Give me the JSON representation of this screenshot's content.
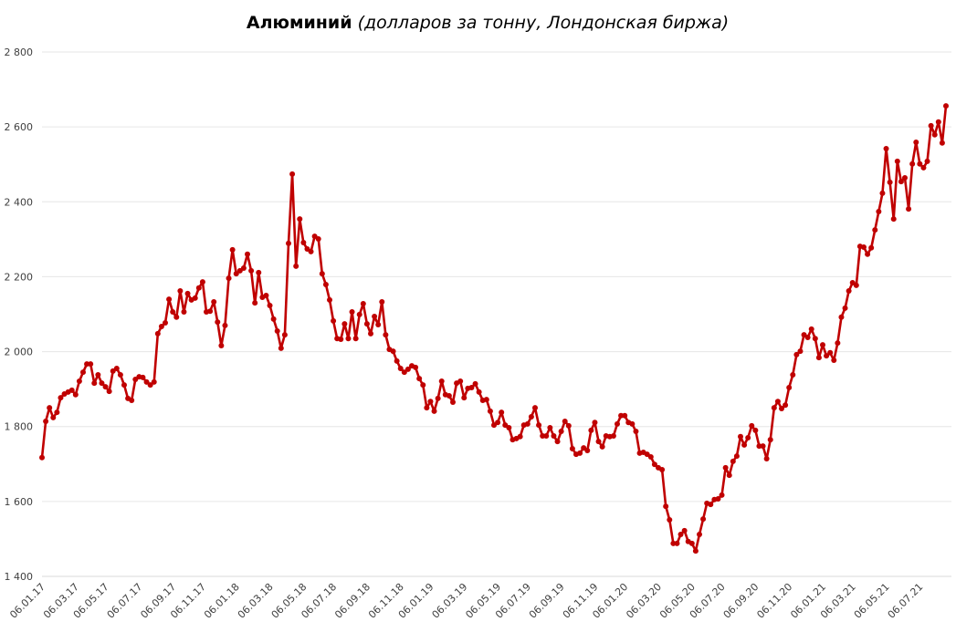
{
  "chart_data": {
    "type": "line",
    "title": "Алюминий",
    "subtitle": "(долларов за тонну, Лондонская биржа)",
    "categories": [
      "06.01.17",
      null,
      null,
      null,
      null,
      null,
      null,
      null,
      null,
      "06.03.17",
      null,
      null,
      null,
      null,
      null,
      null,
      null,
      "06.05.17",
      null,
      null,
      null,
      null,
      null,
      null,
      null,
      null,
      "06.07.17",
      null,
      null,
      null,
      null,
      null,
      null,
      null,
      null,
      "06.09.17",
      null,
      null,
      null,
      null,
      null,
      null,
      null,
      "06.11.17",
      null,
      null,
      null,
      null,
      null,
      null,
      null,
      null,
      "06.01.18",
      null,
      null,
      null,
      null,
      null,
      null,
      null,
      null,
      "06.03.18",
      null,
      null,
      null,
      null,
      null,
      null,
      null,
      null,
      "06.05.18",
      null,
      null,
      null,
      null,
      null,
      null,
      null,
      "06.07.18",
      null,
      null,
      null,
      null,
      null,
      null,
      null,
      null,
      "06.09.18",
      null,
      null,
      null,
      null,
      null,
      null,
      null,
      null,
      "06.11.18",
      null,
      null,
      null,
      null,
      null,
      null,
      null,
      "06.01.19",
      null,
      null,
      null,
      null,
      null,
      null,
      null,
      null,
      "06.03.19",
      null,
      null,
      null,
      null,
      null,
      null,
      null,
      null,
      "06.05.19",
      null,
      null,
      null,
      null,
      null,
      null,
      null,
      "06.07.19",
      null,
      null,
      null,
      null,
      null,
      null,
      null,
      null,
      "06.09.19",
      null,
      null,
      null,
      null,
      null,
      null,
      null,
      null,
      "06.11.19",
      null,
      null,
      null,
      null,
      null,
      null,
      null,
      "06.01.20",
      null,
      null,
      null,
      null,
      null,
      null,
      null,
      null,
      "06.03.20",
      null,
      null,
      null,
      null,
      null,
      null,
      null,
      null,
      "06.05.20",
      null,
      null,
      null,
      null,
      null,
      null,
      null,
      "06.07.20",
      null,
      null,
      null,
      null,
      null,
      null,
      null,
      null,
      "06.09.20",
      null,
      null,
      null,
      null,
      null,
      null,
      null,
      null,
      "06.11.20",
      null,
      null,
      null,
      null,
      null,
      null,
      null,
      null,
      "06.01.21",
      null,
      null,
      null,
      null,
      null,
      null,
      null,
      "06.03.21",
      null,
      null,
      null,
      null,
      null,
      null,
      null,
      null,
      "06.05.21",
      null,
      null,
      null,
      null,
      null,
      null,
      null,
      null,
      "06.07.21",
      null,
      null,
      null,
      null,
      null,
      null,
      null
    ],
    "series": [
      {
        "name": "Алюминий",
        "color": "#c00000",
        "values": [
          1717,
          1814,
          1850,
          1824,
          1838,
          1877,
          1887,
          1892,
          1897,
          1885,
          1921,
          1945,
          1967,
          1967,
          1916,
          1938,
          1916,
          1906,
          1894,
          1948,
          1955,
          1938,
          1911,
          1875,
          1870,
          1926,
          1933,
          1931,
          1919,
          1911,
          1919,
          2048,
          2067,
          2077,
          2140,
          2106,
          2092,
          2162,
          2106,
          2155,
          2138,
          2143,
          2170,
          2186,
          2106,
          2108,
          2133,
          2079,
          2016,
          2070,
          2196,
          2272,
          2208,
          2216,
          2223,
          2260,
          2216,
          2130,
          2211,
          2145,
          2150,
          2123,
          2087,
          2055,
          2009,
          2045,
          2289,
          2474,
          2228,
          2354,
          2291,
          2274,
          2267,
          2308,
          2301,
          2208,
          2179,
          2138,
          2082,
          2035,
          2033,
          2074,
          2035,
          2106,
          2035,
          2099,
          2128,
          2074,
          2048,
          2094,
          2072,
          2133,
          2045,
          2006,
          2001,
          1975,
          1955,
          1945,
          1953,
          1962,
          1958,
          1928,
          1911,
          1850,
          1867,
          1841,
          1875,
          1921,
          1885,
          1882,
          1865,
          1916,
          1921,
          1877,
          1902,
          1904,
          1914,
          1892,
          1870,
          1872,
          1841,
          1804,
          1811,
          1838,
          1804,
          1797,
          1765,
          1768,
          1773,
          1804,
          1807,
          1826,
          1850,
          1804,
          1775,
          1775,
          1797,
          1775,
          1760,
          1787,
          1814,
          1802,
          1741,
          1726,
          1729,
          1743,
          1736,
          1790,
          1811,
          1760,
          1746,
          1775,
          1773,
          1775,
          1807,
          1829,
          1829,
          1811,
          1807,
          1787,
          1729,
          1731,
          1726,
          1719,
          1699,
          1690,
          1685,
          1587,
          1551,
          1488,
          1488,
          1512,
          1522,
          1493,
          1488,
          1468,
          1512,
          1553,
          1595,
          1592,
          1605,
          1607,
          1617,
          1690,
          1670,
          1707,
          1721,
          1773,
          1751,
          1770,
          1802,
          1790,
          1748,
          1748,
          1714,
          1765,
          1850,
          1867,
          1848,
          1857,
          1904,
          1938,
          1992,
          2001,
          2045,
          2038,
          2060,
          2035,
          1984,
          2018,
          1989,
          1997,
          1977,
          2023,
          2092,
          2116,
          2162,
          2184,
          2177,
          2281,
          2279,
          2260,
          2277,
          2325,
          2374,
          2423,
          2542,
          2452,
          2354,
          2508,
          2454,
          2464,
          2381,
          2501,
          2559,
          2501,
          2491,
          2508,
          2603,
          2579,
          2613,
          2557,
          2656
        ]
      }
    ],
    "ylim": [
      1400,
      2800
    ],
    "yticks": [
      {
        "value": 1400,
        "label": "1 400"
      },
      {
        "value": 1600,
        "label": "1 600"
      },
      {
        "value": 1800,
        "label": "1 800"
      },
      {
        "value": 2000,
        "label": "2 000"
      },
      {
        "value": 2200,
        "label": "2 200"
      },
      {
        "value": 2400,
        "label": "2 400"
      },
      {
        "value": 2600,
        "label": "2 600"
      },
      {
        "value": 2800,
        "label": "2 800"
      }
    ],
    "grid": true
  }
}
